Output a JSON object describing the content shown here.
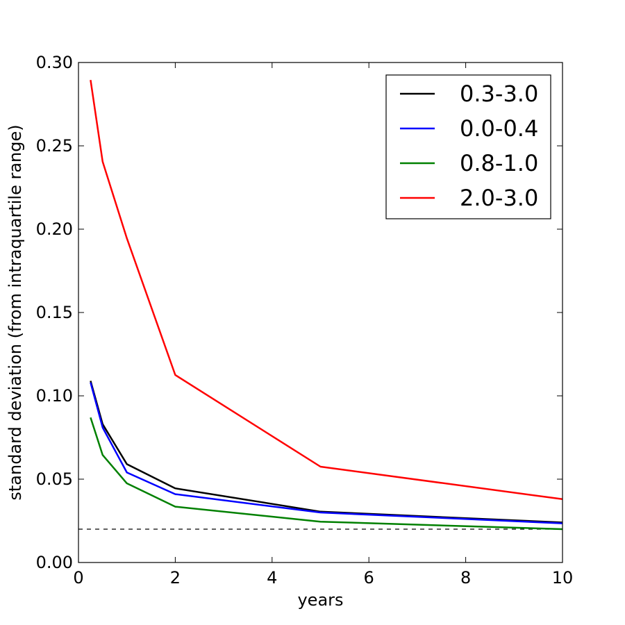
{
  "chart_data": {
    "type": "line",
    "xlabel": "years",
    "ylabel": "standard deviation (from intraquartile range)",
    "xlim": [
      0,
      10
    ],
    "ylim": [
      0,
      0.3
    ],
    "xticks": [
      0,
      2,
      4,
      6,
      8,
      10
    ],
    "xtick_labels": [
      "0",
      "2",
      "4",
      "6",
      "8",
      "10"
    ],
    "yticks": [
      0,
      0.05,
      0.1,
      0.15,
      0.2,
      0.25,
      0.3
    ],
    "ytick_labels": [
      "0.00",
      "0.05",
      "0.10",
      "0.15",
      "0.20",
      "0.25",
      "0.30"
    ],
    "grid": false,
    "legend_position": "top-right",
    "x": [
      0.25,
      0.5,
      1,
      2,
      5,
      10
    ],
    "series": [
      {
        "name": "0.3-3.0",
        "color": "#000000",
        "values": [
          0.109,
          0.083,
          0.059,
          0.0445,
          0.0305,
          0.024
        ]
      },
      {
        "name": "0.0-0.4",
        "color": "#0000ff",
        "values": [
          0.108,
          0.081,
          0.054,
          0.041,
          0.03,
          0.0235
        ]
      },
      {
        "name": "0.8-1.0",
        "color": "#008000",
        "values": [
          0.087,
          0.0645,
          0.0475,
          0.0335,
          0.0245,
          0.02
        ]
      },
      {
        "name": "2.0-3.0",
        "color": "#ff0000",
        "values": [
          0.2895,
          0.2405,
          0.1945,
          0.1125,
          0.0575,
          0.038
        ]
      }
    ],
    "reference_line": {
      "y": 0.02,
      "style": "dashed",
      "color": "#000000"
    }
  }
}
